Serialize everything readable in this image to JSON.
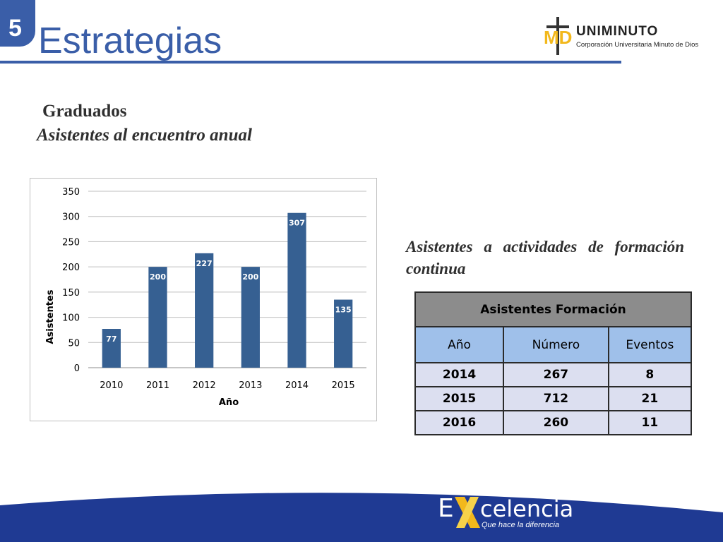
{
  "slide": {
    "number": "5",
    "title": "Estrategias",
    "subtitle1": "Graduados",
    "subtitle2": "Asistentes al encuentro anual",
    "text_formacion": "Asistentes a actividades de formación continua"
  },
  "logo": {
    "mark": "MD",
    "name": "UNIMINUTO",
    "tagline": "Corporación Universitaria Minuto de Dios"
  },
  "footer": {
    "brand_first": "E",
    "brand_rest": "celencia",
    "tagline": "Que hace la diferencia",
    "band_color": "#1f3a93"
  },
  "chart_data": {
    "type": "bar",
    "categories": [
      "2010",
      "2011",
      "2012",
      "2013",
      "2014",
      "2015"
    ],
    "values": [
      77,
      200,
      227,
      200,
      307,
      135
    ],
    "title": "",
    "xlabel": "Año",
    "ylabel": "Asistentes",
    "ylim": [
      0,
      350
    ],
    "yticks": [
      0,
      50,
      100,
      150,
      200,
      250,
      300,
      350
    ],
    "grid": true,
    "bar_color": "#366092",
    "data_label_color": "#ffffff"
  },
  "table": {
    "title": "Asistentes Formación",
    "headers": [
      "Año",
      "Número",
      "Eventos"
    ],
    "rows": [
      [
        "2014",
        "267",
        "8"
      ],
      [
        "2015",
        "712",
        "21"
      ],
      [
        "2016",
        "260",
        "11"
      ]
    ]
  }
}
